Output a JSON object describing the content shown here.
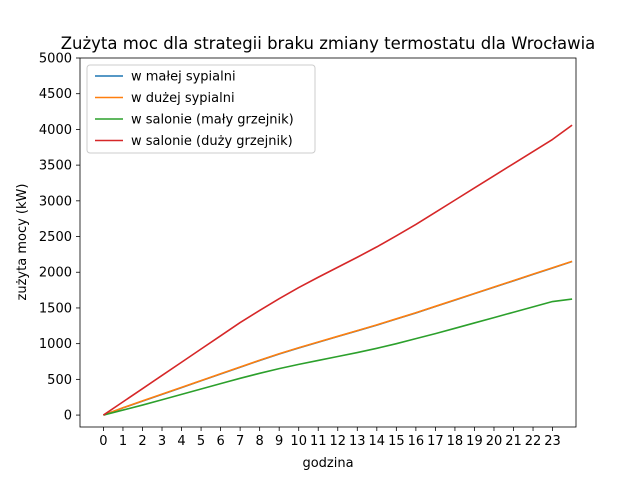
{
  "chart_data": {
    "type": "line",
    "title": "Zużyta moc dla strategii braku zmiany termostatu dla Wrocławia",
    "xlabel": "godzina",
    "ylabel": "zużyta mocy (kW)",
    "xlim": [
      -1.2,
      24.2
    ],
    "ylim": [
      -167,
      5000
    ],
    "xticks": [
      0,
      1,
      2,
      3,
      4,
      5,
      6,
      7,
      8,
      9,
      10,
      11,
      12,
      13,
      14,
      15,
      16,
      17,
      18,
      19,
      20,
      21,
      22,
      23
    ],
    "yticks": [
      0,
      500,
      1000,
      1500,
      2000,
      2500,
      3000,
      3500,
      4000,
      4500,
      5000
    ],
    "legend_position": "upper-left",
    "grid": false,
    "x": [
      0,
      1,
      2,
      3,
      4,
      5,
      6,
      7,
      8,
      9,
      10,
      11,
      12,
      13,
      14,
      15,
      16,
      17,
      18,
      19,
      20,
      21,
      22,
      23,
      24
    ],
    "series": [
      {
        "name": "w małej sypialni",
        "color": "#1f77b4",
        "values": [
          0,
          100,
          195,
          290,
          385,
          480,
          575,
          670,
          765,
          855,
          940,
          1020,
          1100,
          1180,
          1260,
          1345,
          1430,
          1520,
          1610,
          1700,
          1790,
          1880,
          1970,
          2060,
          2150
        ]
      },
      {
        "name": "w dużej sypialni",
        "color": "#ff7f0e",
        "values": [
          0,
          102,
          198,
          293,
          388,
          483,
          578,
          673,
          768,
          858,
          943,
          1023,
          1103,
          1183,
          1263,
          1348,
          1433,
          1523,
          1613,
          1703,
          1793,
          1883,
          1973,
          2063,
          2152
        ]
      },
      {
        "name": "w salonie (mały grzejnik)",
        "color": "#2ca02c",
        "values": [
          0,
          70,
          140,
          215,
          290,
          365,
          440,
          515,
          585,
          650,
          710,
          765,
          820,
          875,
          935,
          1000,
          1070,
          1140,
          1215,
          1290,
          1365,
          1440,
          1515,
          1590,
          1625
        ]
      },
      {
        "name": "w salonie (duży grzejnik)",
        "color": "#d62728",
        "values": [
          0,
          185,
          370,
          555,
          740,
          925,
          1110,
          1295,
          1465,
          1630,
          1785,
          1930,
          2070,
          2210,
          2355,
          2510,
          2670,
          2840,
          3010,
          3180,
          3350,
          3520,
          3690,
          3860,
          4060
        ]
      }
    ]
  }
}
